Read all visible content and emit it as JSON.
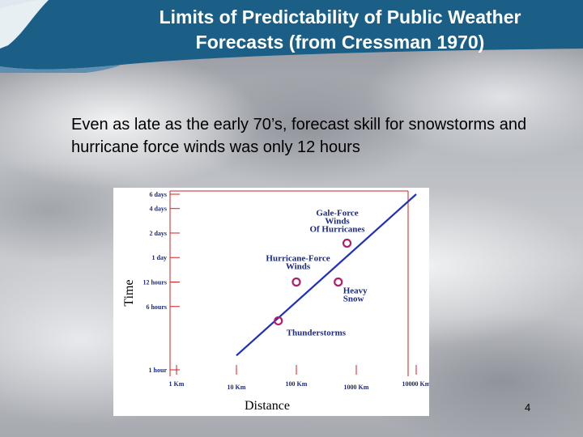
{
  "slide": {
    "title_line1": "Limits of Predictability of Public Weather",
    "title_line2": "Forecasts (from Cressman 1970)",
    "body": "Even as late as the early 70’s, forecast skill for snowstorms and hurricane force winds was only 12 hours",
    "page_number": "4"
  },
  "colors": {
    "header_blue": "#1b5e86",
    "line_blue": "#1f2fbf",
    "marker_red": "#b0206a",
    "tick_red": "#cc2020"
  },
  "chart_data": {
    "type": "scatter",
    "xlabel": "Distance",
    "ylabel": "Time",
    "x_ticks": [
      "1 Km",
      "10 Km",
      "100 Km",
      "1000 Km",
      "10000 Km"
    ],
    "y_ticks": [
      "1 hour",
      "6 hours",
      "12 hours",
      "1 day",
      "2 days",
      "4 days",
      "6 days"
    ],
    "x_scale": "log",
    "y_scale": "log",
    "points": [
      {
        "label_lines": [
          "Thunderstorms"
        ],
        "x_km": 50,
        "y_hours": 4.0
      },
      {
        "label_lines": [
          "Hurricane-Force",
          "Winds"
        ],
        "x_km": 100,
        "y_hours": 12
      },
      {
        "label_lines": [
          "Heavy",
          "Snow"
        ],
        "x_km": 500,
        "y_hours": 12
      },
      {
        "label_lines": [
          "Gale-Force",
          "Winds",
          "Of Hurricanes"
        ],
        "x_km": 700,
        "y_hours": 36
      }
    ],
    "trend_line": {
      "x_km": [
        10,
        10000
      ],
      "y_hours": [
        1.5,
        144
      ]
    }
  }
}
